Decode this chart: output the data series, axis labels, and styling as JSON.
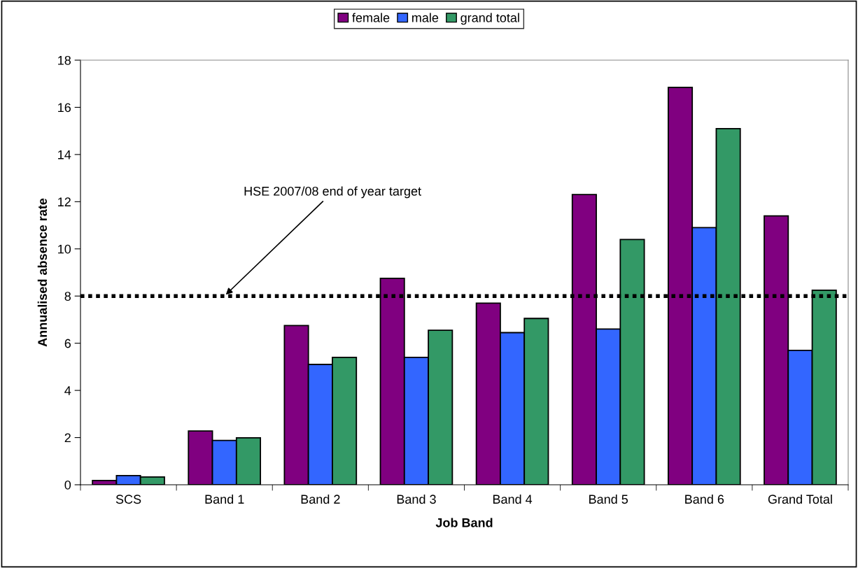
{
  "chart_data": {
    "type": "bar",
    "xlabel": "Job Band",
    "ylabel": "Annualised absence rate",
    "categories": [
      "SCS",
      "Band 1",
      "Band 2",
      "Band 3",
      "Band 4",
      "Band 5",
      "Band 6",
      "Grand Total"
    ],
    "series": [
      {
        "name": "female",
        "color": "#800080",
        "values": [
          0.18,
          2.28,
          6.75,
          8.75,
          7.7,
          12.3,
          16.85,
          11.4
        ]
      },
      {
        "name": "male",
        "color": "#3366ff",
        "values": [
          0.39,
          1.88,
          5.1,
          5.4,
          6.45,
          6.6,
          10.9,
          5.7
        ]
      },
      {
        "name": "grand total",
        "color": "#339966",
        "values": [
          0.33,
          1.99,
          5.4,
          6.55,
          7.05,
          10.4,
          15.1,
          8.25
        ]
      }
    ],
    "ylim": [
      0,
      18
    ],
    "yticks": [
      0,
      2,
      4,
      6,
      8,
      10,
      12,
      14,
      16,
      18
    ],
    "ref_lines": [
      {
        "axis": "y",
        "value": 8,
        "color": "#000000",
        "line_style": "dotted"
      }
    ],
    "annotations": [
      {
        "text": "HSE 2007/08 end of year target",
        "x": "Band 1",
        "y": 8
      }
    ],
    "legend": "top",
    "grid": false
  }
}
